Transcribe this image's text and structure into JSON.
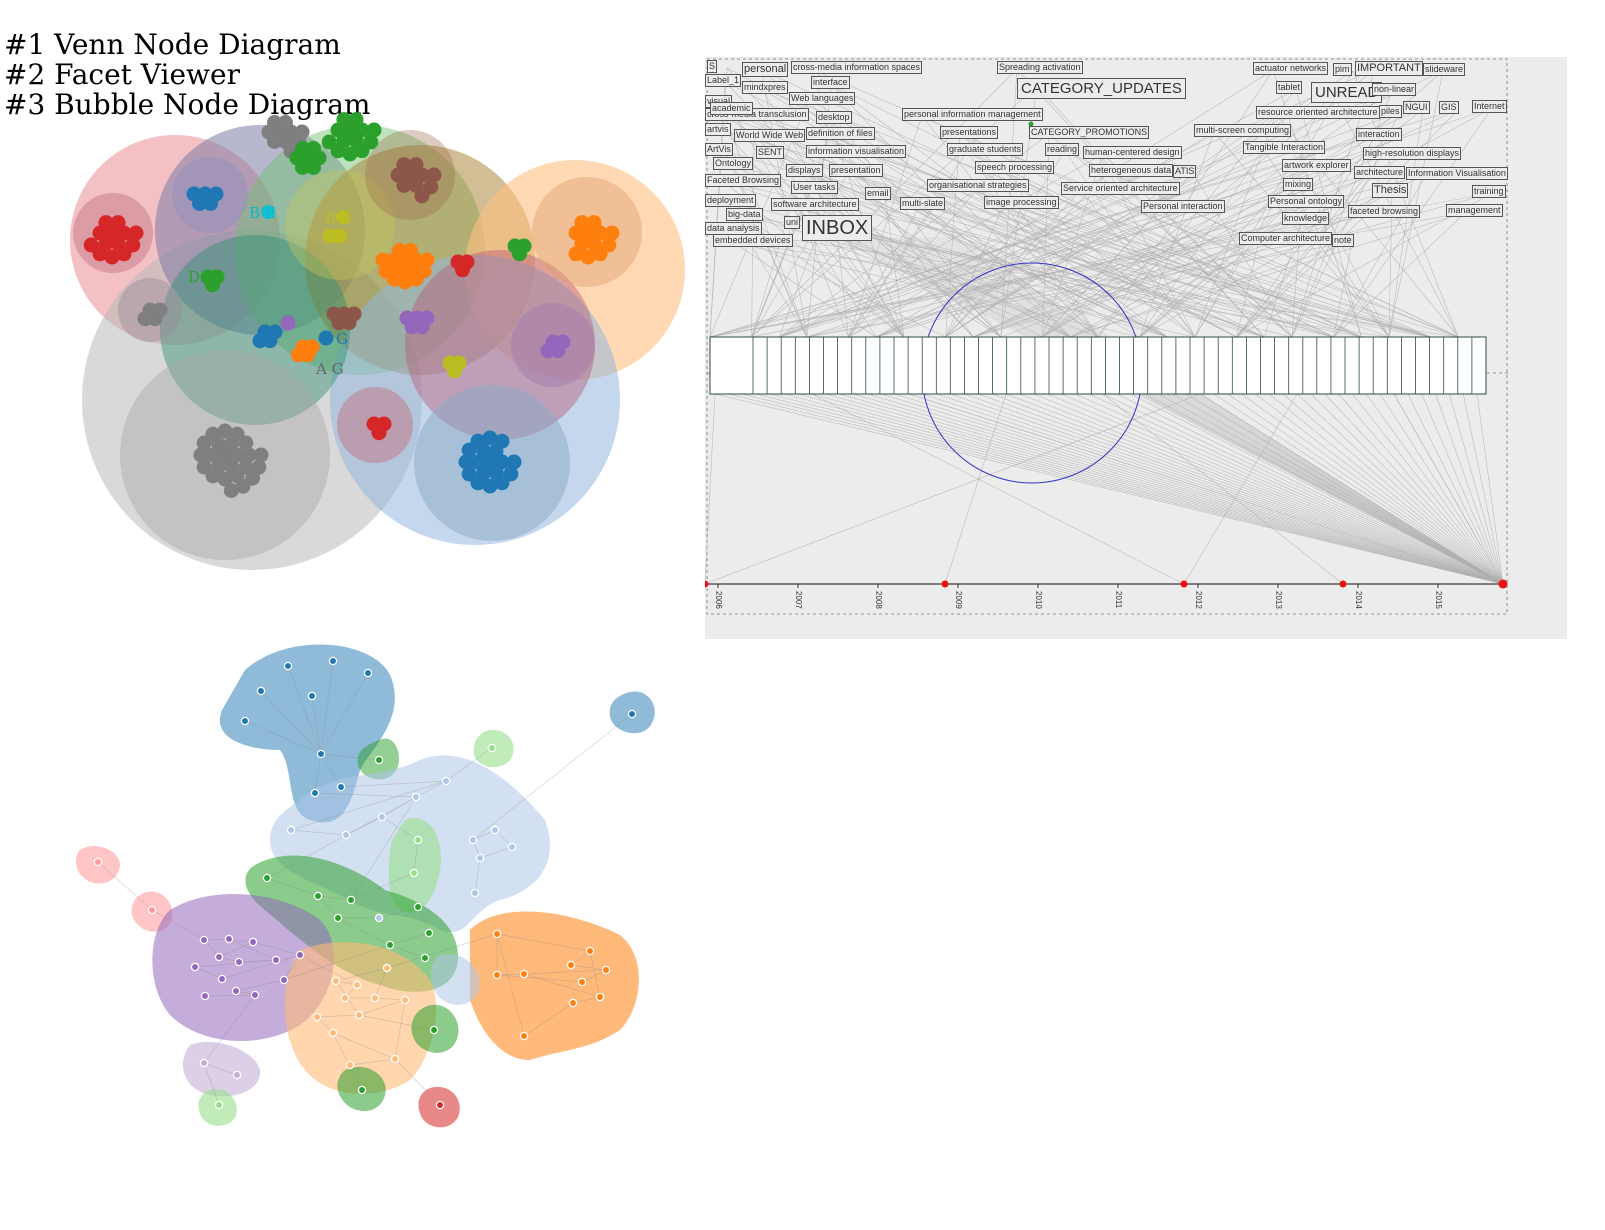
{
  "titles": [
    "#1 Venn Node Diagram",
    "#2 Facet Viewer",
    "#3 Bubble Node Diagram"
  ],
  "venn": {
    "labels": [
      {
        "text": "B E",
        "color": "#00bcd4"
      },
      {
        "text": "B E",
        "color": "#bcbd22"
      },
      {
        "text": "D G",
        "color": "#2ca02c"
      },
      {
        "text": "A G",
        "color": "#666666"
      },
      {
        "text": "G",
        "color": "#1f77b4"
      }
    ]
  },
  "facet": {
    "tags": [
      {
        "text": "S",
        "size": ""
      },
      {
        "text": "personal",
        "size": "mid"
      },
      {
        "text": "cross-media information spaces",
        "size": ""
      },
      {
        "text": "Spreading activation",
        "size": ""
      },
      {
        "text": "actuator networks",
        "size": ""
      },
      {
        "text": "pim",
        "size": ""
      },
      {
        "text": "IMPORTANT",
        "size": "mid"
      },
      {
        "text": "slideware",
        "size": ""
      },
      {
        "text": "Label_1",
        "size": ""
      },
      {
        "text": "interface",
        "size": ""
      },
      {
        "text": "mindxpres",
        "size": ""
      },
      {
        "text": "CATEGORY_UPDATES",
        "size": "big"
      },
      {
        "text": "tablet",
        "size": ""
      },
      {
        "text": "UNREAD",
        "size": "big"
      },
      {
        "text": "non-linear",
        "size": ""
      },
      {
        "text": "visual",
        "size": ""
      },
      {
        "text": "Web languages",
        "size": ""
      },
      {
        "text": "cross-media transclusion",
        "size": ""
      },
      {
        "text": "academic",
        "size": ""
      },
      {
        "text": "desktop",
        "size": ""
      },
      {
        "text": "personal information management",
        "size": ""
      },
      {
        "text": "resource oriented architecture",
        "size": ""
      },
      {
        "text": "piles",
        "size": ""
      },
      {
        "text": "NGUI",
        "size": ""
      },
      {
        "text": "GIS",
        "size": ""
      },
      {
        "text": "Internet",
        "size": ""
      },
      {
        "text": "artvis",
        "size": ""
      },
      {
        "text": "World Wide Web",
        "size": ""
      },
      {
        "text": "definition of files",
        "size": ""
      },
      {
        "text": "presentations",
        "size": ""
      },
      {
        "text": "CATEGORY_PROMOTIONS",
        "size": ""
      },
      {
        "text": "multi-screen computing",
        "size": ""
      },
      {
        "text": "interaction",
        "size": ""
      },
      {
        "text": "ArtVis",
        "size": ""
      },
      {
        "text": "SENT",
        "size": ""
      },
      {
        "text": "information visualisation",
        "size": ""
      },
      {
        "text": "graduate students",
        "size": ""
      },
      {
        "text": "reading",
        "size": ""
      },
      {
        "text": "human-centered design",
        "size": ""
      },
      {
        "text": "Tangible Interaction",
        "size": ""
      },
      {
        "text": "high-resolution displays",
        "size": ""
      },
      {
        "text": "Ontology",
        "size": ""
      },
      {
        "text": "displays",
        "size": ""
      },
      {
        "text": "presentation",
        "size": ""
      },
      {
        "text": "speech processing",
        "size": ""
      },
      {
        "text": "heterogeneous data",
        "size": ""
      },
      {
        "text": "ATIS",
        "size": ""
      },
      {
        "text": "artwork explorer",
        "size": ""
      },
      {
        "text": "architecture",
        "size": ""
      },
      {
        "text": "Information Visualisation",
        "size": ""
      },
      {
        "text": "Faceted Browsing",
        "size": ""
      },
      {
        "text": "User tasks",
        "size": ""
      },
      {
        "text": "organisational strategies",
        "size": ""
      },
      {
        "text": "Service oriented architecture",
        "size": ""
      },
      {
        "text": "mixing",
        "size": ""
      },
      {
        "text": "Thesis",
        "size": "mid"
      },
      {
        "text": "training",
        "size": ""
      },
      {
        "text": "deployment",
        "size": ""
      },
      {
        "text": "email",
        "size": ""
      },
      {
        "text": "software architecture",
        "size": ""
      },
      {
        "text": "multi-slate",
        "size": ""
      },
      {
        "text": "image processing",
        "size": ""
      },
      {
        "text": "Personal interaction",
        "size": ""
      },
      {
        "text": "Personal ontology",
        "size": ""
      },
      {
        "text": "faceted browsing",
        "size": ""
      },
      {
        "text": "management",
        "size": ""
      },
      {
        "text": "big-data",
        "size": ""
      },
      {
        "text": "knowledge",
        "size": ""
      },
      {
        "text": "uni",
        "size": ""
      },
      {
        "text": "data analysis",
        "size": ""
      },
      {
        "text": "INBOX",
        "size": "huge"
      },
      {
        "text": "embedded devices",
        "size": ""
      },
      {
        "text": "Computer architecture",
        "size": ""
      },
      {
        "text": "note",
        "size": ""
      }
    ],
    "years": [
      "2006",
      "2007",
      "2008",
      "2009",
      "2010",
      "2011",
      "2012",
      "2013",
      "2014",
      "2015"
    ],
    "link_color": "#b0b0b0",
    "circle_color": "#3333cc",
    "marker_color": "#ee1111"
  },
  "bubble": {
    "colors": {
      "blue": "#1f77b4",
      "light_blue": "#aec7e8",
      "green": "#2ca02c",
      "light_green": "#98df8a",
      "purple": "#9467bd",
      "light_purple": "#c5b0d5",
      "orange": "#ff7f0e",
      "light_orange": "#ffbb78",
      "pink": "#ff9896",
      "red": "#d62728"
    }
  }
}
